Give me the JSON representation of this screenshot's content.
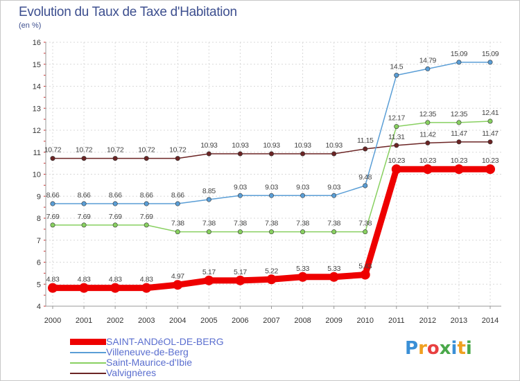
{
  "title": "Evolution du Taux de Taxe d'Habitation",
  "subtitle": "(en %)",
  "logo": {
    "text": "Proxiti",
    "letters": [
      {
        "ch": "P",
        "color": "#3a8fd6"
      },
      {
        "ch": "r",
        "color": "#f0a020"
      },
      {
        "ch": "o",
        "color": "#e84040"
      },
      {
        "ch": "x",
        "color": "#4aa84a"
      },
      {
        "ch": "i",
        "color": "#3a8fd6"
      },
      {
        "ch": "t",
        "color": "#f0a020"
      },
      {
        "ch": "i",
        "color": "#4aa84a"
      }
    ]
  },
  "chart_data": {
    "type": "line",
    "x": [
      2000,
      2001,
      2002,
      2003,
      2004,
      2005,
      2006,
      2007,
      2008,
      2009,
      2010,
      2011,
      2012,
      2013,
      2014
    ],
    "ylim": [
      4,
      16
    ],
    "yticks": [
      4,
      5,
      6,
      7,
      8,
      9,
      10,
      11,
      12,
      13,
      14,
      15,
      16
    ],
    "grid": true,
    "legend_position": "bottom-left",
    "series": [
      {
        "name": "Valvignères",
        "color": "#6b2424",
        "values": [
          10.72,
          10.72,
          10.72,
          10.72,
          10.72,
          10.93,
          10.93,
          10.93,
          10.93,
          10.93,
          11.15,
          11.31,
          11.42,
          11.47,
          11.47
        ],
        "labels": [
          "10.72",
          "10.72",
          "10.72",
          "10.72",
          "10.72",
          "10.93",
          "10.93",
          "10.93",
          "10.93",
          "10.93",
          "11.15",
          "11.31",
          "11.42",
          "11.47",
          "11.47"
        ]
      },
      {
        "name": "Villeneuve-de-Berg",
        "color": "#5a9ed6",
        "values": [
          8.66,
          8.66,
          8.66,
          8.66,
          8.66,
          8.85,
          9.03,
          9.03,
          9.03,
          9.03,
          9.48,
          14.5,
          14.79,
          15.09,
          15.09
        ],
        "labels": [
          "8.66",
          "8.66",
          "8.66",
          "8.66",
          "8.66",
          "8.85",
          "9.03",
          "9.03",
          "9.03",
          "9.03",
          "9.48",
          "14.5",
          "14.79",
          "15.09",
          "15.09"
        ]
      },
      {
        "name": "Saint-Maurice-d'Ibie",
        "color": "#88d060",
        "values": [
          7.69,
          7.69,
          7.69,
          7.69,
          7.38,
          7.38,
          7.38,
          7.38,
          7.38,
          7.38,
          7.38,
          12.17,
          12.35,
          12.35,
          12.41
        ],
        "labels": [
          "7.69",
          "7.69",
          "7.69",
          "7.69",
          "7.38",
          "7.38",
          "7.38",
          "7.38",
          "7.38",
          "7.38",
          "7.38",
          "12.17",
          "12.35",
          "12.35",
          "12.41"
        ]
      },
      {
        "name": "SAINT-ANDéOL-DE-BERG",
        "color": "#ee0000",
        "values": [
          4.83,
          4.83,
          4.83,
          4.83,
          4.97,
          5.17,
          5.17,
          5.22,
          5.33,
          5.33,
          5.43,
          10.23,
          10.23,
          10.23,
          10.23
        ],
        "labels": [
          "4.83",
          "4.83",
          "4.83",
          "4.83",
          "4.97",
          "5.17",
          "5.17",
          "5.22",
          "5.33",
          "5.33",
          "5.43",
          "10.23",
          "10.23",
          "10.23",
          "10.23"
        ]
      }
    ],
    "legend": [
      {
        "name": "SAINT-ANDéOL-DE-BERG",
        "color": "#ee0000",
        "thick": true
      },
      {
        "name": "Villeneuve-de-Berg",
        "color": "#5a9ed6",
        "thick": false
      },
      {
        "name": "Saint-Maurice-d'Ibie",
        "color": "#88d060",
        "thick": false
      },
      {
        "name": "Valvignères",
        "color": "#6b2424",
        "thick": false
      }
    ]
  }
}
